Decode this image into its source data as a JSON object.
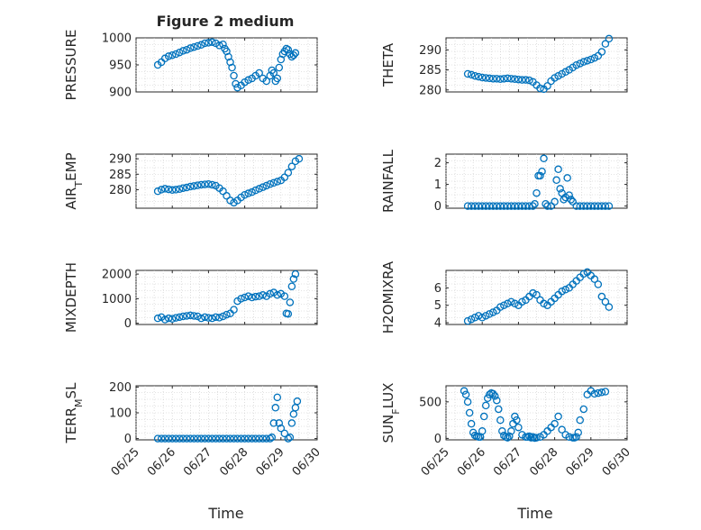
{
  "figure": {
    "title": "Figure 2 medium",
    "xlabel": "Time"
  },
  "x_ticks": [
    "06/25",
    "06/26",
    "06/27",
    "06/28",
    "06/29",
    "06/30"
  ],
  "chart_data": [
    {
      "type": "scatter",
      "id": "pressure",
      "title": "Figure 2 medium",
      "ylabel": "PRESSURE",
      "ylabel_sub": "",
      "ylabel_after": "",
      "ylim": [
        900,
        1000
      ],
      "yticks": [
        900,
        950,
        1000
      ],
      "x": [
        25.6,
        25.7,
        25.8,
        25.9,
        26.0,
        26.1,
        26.2,
        26.3,
        26.4,
        26.5,
        26.6,
        26.7,
        26.8,
        26.9,
        27.0,
        27.1,
        27.2,
        27.3,
        27.4,
        27.45,
        27.5,
        27.55,
        27.6,
        27.65,
        27.7,
        27.75,
        27.8,
        27.9,
        28.0,
        28.1,
        28.2,
        28.3,
        28.4,
        28.5,
        28.6,
        28.7,
        28.75,
        28.8,
        28.85,
        28.9,
        28.95,
        29.0,
        29.05,
        29.1,
        29.15,
        29.2,
        29.25,
        29.3,
        29.35,
        29.4
      ],
      "y": [
        950,
        955,
        962,
        966,
        968,
        970,
        973,
        976,
        978,
        981,
        983,
        985,
        987,
        990,
        991,
        992,
        990,
        986,
        988,
        980,
        975,
        965,
        955,
        945,
        930,
        915,
        908,
        912,
        918,
        922,
        925,
        930,
        935,
        925,
        920,
        930,
        940,
        935,
        920,
        925,
        945,
        960,
        970,
        975,
        980,
        978,
        970,
        965,
        968,
        972
      ]
    },
    {
      "type": "scatter",
      "id": "theta",
      "ylabel": "THETA",
      "ylabel_sub": "",
      "ylabel_after": "",
      "ylim": [
        279.5,
        293
      ],
      "yticks": [
        280,
        285,
        290
      ],
      "x": [
        25.6,
        25.7,
        25.8,
        25.9,
        26.0,
        26.1,
        26.2,
        26.3,
        26.4,
        26.5,
        26.6,
        26.7,
        26.8,
        26.9,
        27.0,
        27.1,
        27.2,
        27.3,
        27.4,
        27.5,
        27.6,
        27.7,
        27.8,
        27.9,
        28.0,
        28.1,
        28.2,
        28.3,
        28.4,
        28.5,
        28.6,
        28.7,
        28.8,
        28.9,
        29.0,
        29.1,
        29.2,
        29.3,
        29.4,
        29.5
      ],
      "y": [
        284,
        283.8,
        283.5,
        283.3,
        283.1,
        283,
        282.9,
        282.8,
        282.8,
        282.7,
        282.8,
        282.9,
        282.8,
        282.7,
        282.6,
        282.5,
        282.5,
        282.4,
        282,
        281.2,
        280.4,
        280.2,
        281,
        282.2,
        283,
        283.5,
        284,
        284.5,
        285,
        285.6,
        286.2,
        286.6,
        287,
        287.3,
        287.6,
        288,
        288.5,
        289.5,
        291.5,
        292.8
      ]
    },
    {
      "type": "scatter",
      "id": "air-temp",
      "ylabel": "AIR",
      "ylabel_sub": "T",
      "ylabel_after": "EMP",
      "ylim": [
        274,
        291.5
      ],
      "yticks": [
        280,
        285,
        290
      ],
      "x": [
        25.6,
        25.7,
        25.8,
        25.9,
        26.0,
        26.1,
        26.2,
        26.3,
        26.4,
        26.5,
        26.6,
        26.7,
        26.8,
        26.9,
        27.0,
        27.1,
        27.2,
        27.3,
        27.4,
        27.5,
        27.6,
        27.7,
        27.8,
        27.9,
        28.0,
        28.1,
        28.2,
        28.3,
        28.4,
        28.5,
        28.6,
        28.7,
        28.8,
        28.9,
        29.0,
        29.1,
        29.2,
        29.3,
        29.4,
        29.5
      ],
      "y": [
        279.5,
        280,
        280.3,
        280.1,
        279.9,
        280,
        280.2,
        280.5,
        280.7,
        281,
        281.2,
        281.4,
        281.6,
        281.7,
        281.8,
        281.6,
        281.3,
        280.5,
        279.5,
        278,
        276.5,
        275.8,
        276.5,
        277.5,
        278.3,
        278.8,
        279.2,
        279.8,
        280.3,
        280.8,
        281.3,
        281.8,
        282.2,
        282.6,
        283,
        284,
        285.5,
        287.5,
        289.2,
        290
      ]
    },
    {
      "type": "scatter",
      "id": "rainfall",
      "ylabel": "RAINFALL",
      "ylabel_sub": "",
      "ylabel_after": "",
      "ylim": [
        -0.1,
        2.4
      ],
      "yticks": [
        0,
        1,
        2
      ],
      "x": [
        25.6,
        25.7,
        25.8,
        25.9,
        26.0,
        26.1,
        26.2,
        26.3,
        26.4,
        26.5,
        26.6,
        26.7,
        26.8,
        26.9,
        27.0,
        27.1,
        27.2,
        27.3,
        27.4,
        27.45,
        27.5,
        27.55,
        27.6,
        27.65,
        27.7,
        27.75,
        27.8,
        27.9,
        28.0,
        28.05,
        28.1,
        28.15,
        28.2,
        28.25,
        28.3,
        28.35,
        28.4,
        28.45,
        28.5,
        28.6,
        28.7,
        28.8,
        28.9,
        29.0,
        29.1,
        29.2,
        29.3,
        29.4,
        29.5
      ],
      "y": [
        0,
        0,
        0,
        0,
        0,
        0,
        0,
        0,
        0,
        0,
        0,
        0,
        0,
        0,
        0,
        0,
        0,
        0,
        0,
        0.1,
        0.6,
        1.4,
        1.4,
        1.6,
        2.2,
        0.1,
        0,
        0,
        0.2,
        1.2,
        1.7,
        0.8,
        0.6,
        0.3,
        0.4,
        1.3,
        0.5,
        0.3,
        0.2,
        0,
        0,
        0,
        0,
        0,
        0,
        0,
        0,
        0,
        0
      ]
    },
    {
      "type": "scatter",
      "id": "mixdepth",
      "ylabel": "MIXDEPTH",
      "ylabel_sub": "",
      "ylabel_after": "",
      "ylim": [
        -50,
        2150
      ],
      "yticks": [
        0,
        1000,
        2000
      ],
      "x": [
        25.6,
        25.7,
        25.8,
        25.9,
        26.0,
        26.1,
        26.2,
        26.3,
        26.4,
        26.5,
        26.6,
        26.7,
        26.8,
        26.9,
        27.0,
        27.1,
        27.2,
        27.3,
        27.4,
        27.5,
        27.6,
        27.7,
        27.8,
        27.9,
        28.0,
        28.1,
        28.2,
        28.3,
        28.4,
        28.5,
        28.6,
        28.7,
        28.8,
        28.9,
        29.0,
        29.1,
        29.15,
        29.2,
        29.25,
        29.3,
        29.35,
        29.4
      ],
      "y": [
        200,
        250,
        150,
        200,
        180,
        220,
        250,
        280,
        300,
        320,
        300,
        280,
        200,
        250,
        220,
        200,
        250,
        230,
        280,
        350,
        400,
        550,
        900,
        1000,
        1050,
        1100,
        1050,
        1080,
        1100,
        1150,
        1100,
        1200,
        1250,
        1150,
        1200,
        1100,
        400,
        380,
        850,
        1500,
        1800,
        2000
      ]
    },
    {
      "type": "scatter",
      "id": "h2omixra",
      "ylabel": "H2OMIXRA",
      "ylabel_sub": "",
      "ylabel_after": "",
      "ylim": [
        3.9,
        7
      ],
      "yticks": [
        4,
        5,
        6
      ],
      "x": [
        25.6,
        25.7,
        25.8,
        25.9,
        26.0,
        26.1,
        26.2,
        26.3,
        26.4,
        26.5,
        26.6,
        26.7,
        26.8,
        26.9,
        27.0,
        27.1,
        27.2,
        27.3,
        27.4,
        27.5,
        27.6,
        27.7,
        27.8,
        27.9,
        28.0,
        28.1,
        28.2,
        28.3,
        28.4,
        28.5,
        28.6,
        28.7,
        28.8,
        28.9,
        29.0,
        29.1,
        29.2,
        29.3,
        29.4,
        29.5
      ],
      "y": [
        4.1,
        4.2,
        4.3,
        4.4,
        4.3,
        4.4,
        4.5,
        4.6,
        4.7,
        4.9,
        5.0,
        5.1,
        5.2,
        5.1,
        5.0,
        5.2,
        5.3,
        5.5,
        5.7,
        5.6,
        5.3,
        5.1,
        5.0,
        5.2,
        5.4,
        5.6,
        5.8,
        5.9,
        6.0,
        6.2,
        6.4,
        6.6,
        6.8,
        6.9,
        6.7,
        6.5,
        6.2,
        5.5,
        5.2,
        4.9
      ]
    },
    {
      "type": "scatter",
      "id": "terr-msl",
      "ylabel": "TERR",
      "ylabel_sub": "M",
      "ylabel_after": "SL",
      "ylim": [
        -5,
        205
      ],
      "yticks": [
        0,
        100,
        200
      ],
      "x": [
        25.6,
        25.7,
        25.8,
        25.9,
        26.0,
        26.1,
        26.2,
        26.3,
        26.4,
        26.5,
        26.6,
        26.7,
        26.8,
        26.9,
        27.0,
        27.1,
        27.2,
        27.3,
        27.4,
        27.5,
        27.6,
        27.7,
        27.8,
        27.9,
        28.0,
        28.1,
        28.2,
        28.3,
        28.4,
        28.5,
        28.6,
        28.7,
        28.75,
        28.8,
        28.85,
        28.9,
        28.95,
        29.0,
        29.1,
        29.2,
        29.25,
        29.3,
        29.35,
        29.4,
        29.45
      ],
      "y": [
        0,
        0,
        0,
        0,
        0,
        0,
        0,
        0,
        0,
        0,
        0,
        0,
        0,
        0,
        0,
        0,
        0,
        0,
        0,
        0,
        0,
        0,
        0,
        0,
        0,
        0,
        0,
        0,
        0,
        0,
        0,
        0,
        5,
        60,
        120,
        160,
        60,
        40,
        20,
        0,
        5,
        60,
        95,
        120,
        145
      ]
    },
    {
      "type": "scatter",
      "id": "sun-flux",
      "ylabel": "SUN",
      "ylabel_sub": "F",
      "ylabel_after": "LUX",
      "ylim": [
        -20,
        720
      ],
      "yticks": [
        0,
        500
      ],
      "x": [
        25.5,
        25.55,
        25.6,
        25.65,
        25.7,
        25.75,
        25.8,
        25.85,
        25.9,
        25.95,
        26.0,
        26.05,
        26.1,
        26.15,
        26.2,
        26.25,
        26.3,
        26.35,
        26.4,
        26.45,
        26.5,
        26.55,
        26.6,
        26.65,
        26.7,
        26.75,
        26.8,
        26.85,
        26.9,
        26.95,
        27.0,
        27.1,
        27.2,
        27.25,
        27.3,
        27.35,
        27.4,
        27.45,
        27.5,
        27.6,
        27.7,
        27.8,
        27.9,
        28.0,
        28.1,
        28.2,
        28.3,
        28.4,
        28.5,
        28.55,
        28.6,
        28.65,
        28.7,
        28.8,
        28.9,
        29.0,
        29.1,
        29.2,
        29.3,
        29.4
      ],
      "y": [
        650,
        600,
        500,
        350,
        200,
        80,
        40,
        30,
        20,
        20,
        100,
        300,
        450,
        550,
        600,
        620,
        610,
        580,
        520,
        400,
        250,
        100,
        40,
        20,
        10,
        30,
        100,
        200,
        300,
        250,
        150,
        50,
        20,
        20,
        30,
        10,
        20,
        5,
        10,
        20,
        50,
        100,
        150,
        200,
        300,
        120,
        50,
        20,
        10,
        10,
        20,
        80,
        250,
        400,
        600,
        650,
        610,
        620,
        630,
        640
      ]
    }
  ]
}
